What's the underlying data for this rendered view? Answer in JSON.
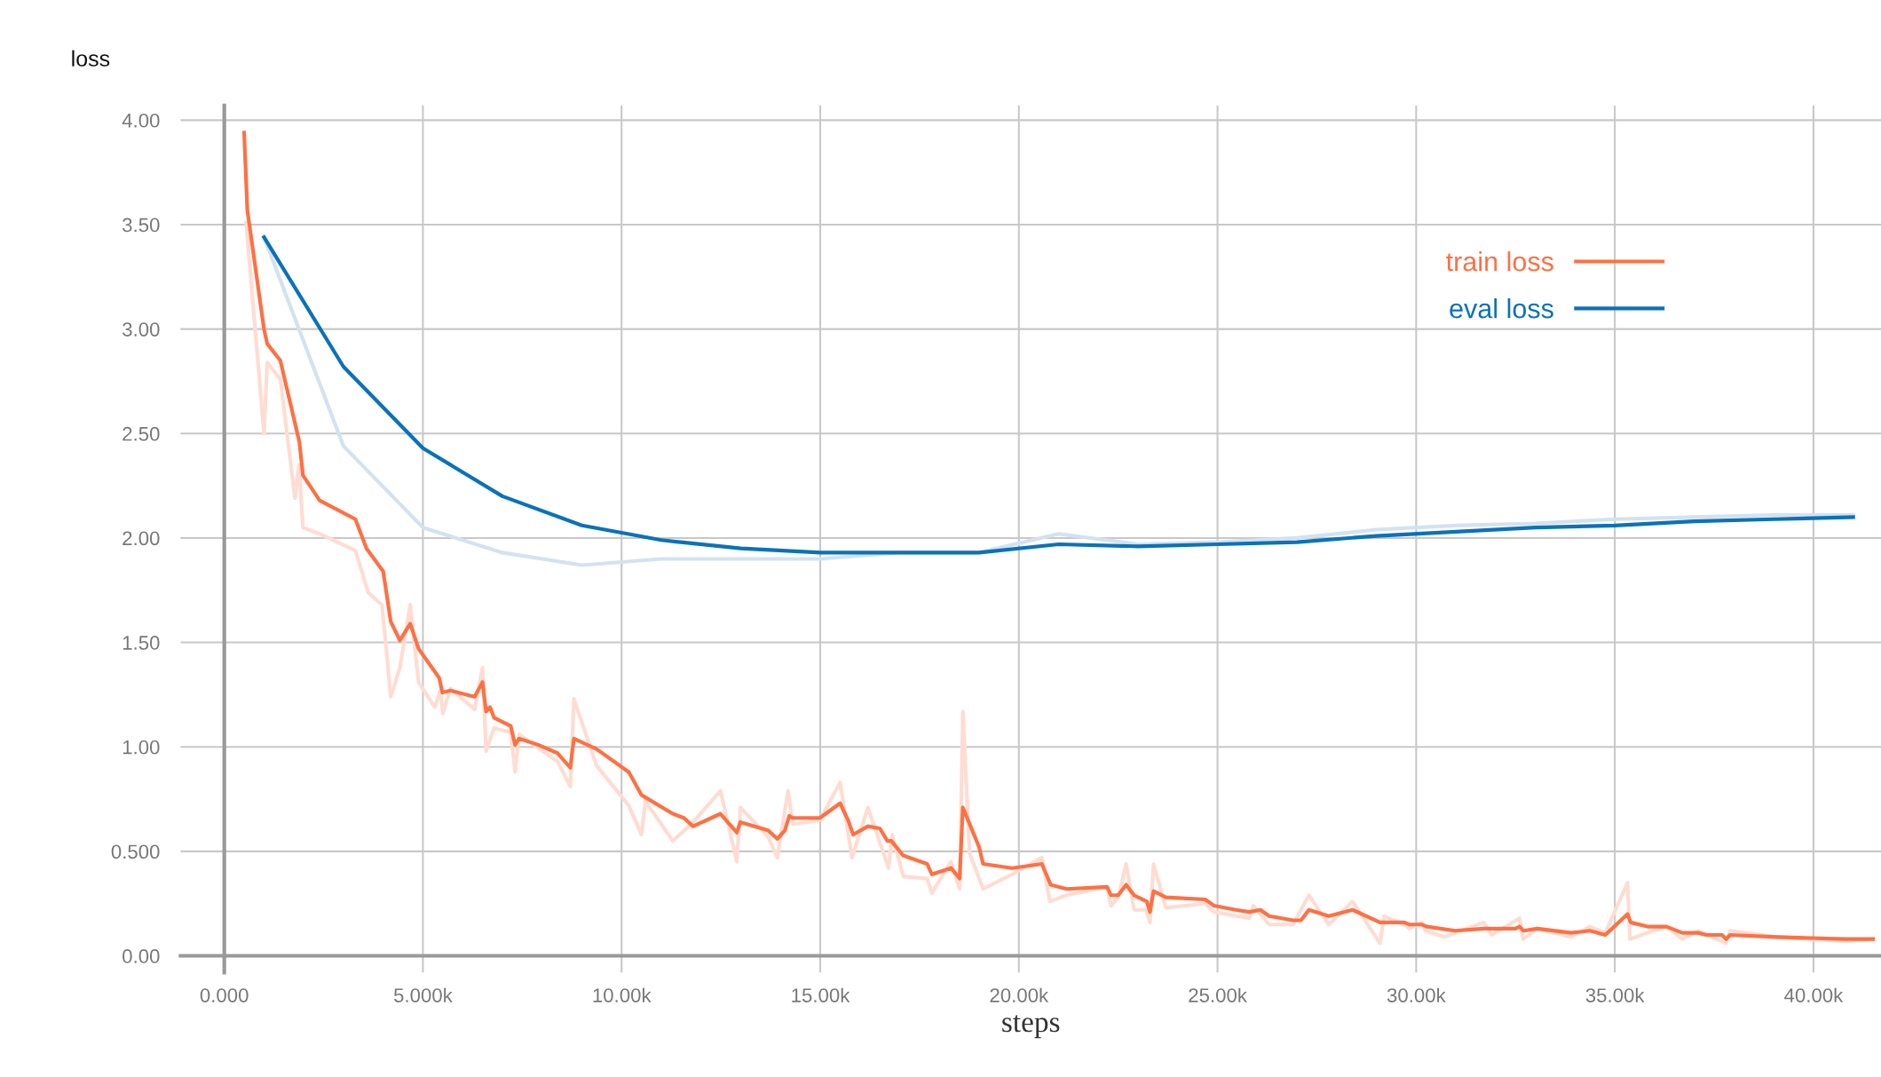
{
  "chart_data": {
    "type": "line",
    "ylabel": "loss",
    "xlabel": "steps",
    "xlim": [
      -1100,
      41700
    ],
    "ylim": [
      -0.08,
      4.07
    ],
    "xticks": [
      {
        "value": 0,
        "label": "0.000"
      },
      {
        "value": 5000,
        "label": "5.000k"
      },
      {
        "value": 10000,
        "label": "10.00k"
      },
      {
        "value": 15000,
        "label": "15.00k"
      },
      {
        "value": 20000,
        "label": "20.00k"
      },
      {
        "value": 25000,
        "label": "25.00k"
      },
      {
        "value": 30000,
        "label": "30.00k"
      },
      {
        "value": 35000,
        "label": "35.00k"
      },
      {
        "value": 40000,
        "label": "40.00k"
      }
    ],
    "yticks": [
      {
        "value": 0,
        "label": "0.00"
      },
      {
        "value": 0.5,
        "label": "0.500"
      },
      {
        "value": 1,
        "label": "1.00"
      },
      {
        "value": 1.5,
        "label": "1.50"
      },
      {
        "value": 2,
        "label": "2.00"
      },
      {
        "value": 2.5,
        "label": "2.50"
      },
      {
        "value": 3,
        "label": "3.00"
      },
      {
        "value": 3.5,
        "label": "3.50"
      },
      {
        "value": 4,
        "label": "4.00"
      }
    ],
    "grid": true,
    "legend": "top right",
    "marker": "none",
    "line_style": "solid",
    "series": [
      {
        "color": "#ffdcd2",
        "x": [
          550,
          1000,
          1080,
          1410,
          1780,
          1880,
          1980,
          2400,
          3300,
          3620,
          3970,
          4190,
          4420,
          4680,
          4890,
          5300,
          5440,
          5500,
          5690,
          6300,
          6500,
          6590,
          6790,
          7210,
          7320,
          7420,
          8390,
          8710,
          8800,
          9370,
          10180,
          10500,
          10600,
          11290,
          11800,
          12490,
          12900,
          12990,
          13690,
          13920,
          14190,
          14310,
          14990,
          15500,
          15800,
          16200,
          16720,
          16810,
          17090,
          17690,
          17810,
          18290,
          18510,
          18590,
          18760,
          19100,
          19830,
          20580,
          20780,
          21200,
          22220,
          22320,
          22500,
          22700,
          22900,
          23200,
          23300,
          23390,
          23700,
          24690,
          24910,
          25800,
          25900,
          26300,
          26900,
          27300,
          27800,
          28400,
          29090,
          29190,
          29700,
          29830,
          30140,
          30230,
          30710,
          30980,
          31700,
          31900,
          32600,
          32690,
          33050,
          33900,
          34370,
          34760,
          35320,
          35380,
          35820,
          36300,
          36700,
          37100,
          37800,
          37900,
          39100,
          40800,
          41500
        ],
        "values": [
          3.51,
          2.5,
          2.84,
          2.76,
          2.19,
          2.35,
          2.05,
          2.02,
          1.94,
          1.74,
          1.68,
          1.24,
          1.38,
          1.68,
          1.31,
          1.19,
          1.27,
          1.16,
          1.28,
          1.18,
          1.38,
          0.98,
          1.09,
          1.07,
          0.88,
          1.06,
          0.93,
          0.81,
          1.23,
          0.91,
          0.72,
          0.58,
          0.74,
          0.55,
          0.64,
          0.79,
          0.45,
          0.71,
          0.57,
          0.47,
          0.79,
          0.63,
          0.65,
          0.83,
          0.47,
          0.71,
          0.42,
          0.58,
          0.38,
          0.37,
          0.3,
          0.45,
          0.32,
          1.17,
          0.49,
          0.32,
          0.39,
          0.47,
          0.26,
          0.29,
          0.33,
          0.24,
          0.28,
          0.44,
          0.22,
          0.22,
          0.16,
          0.44,
          0.23,
          0.25,
          0.21,
          0.18,
          0.24,
          0.15,
          0.15,
          0.29,
          0.15,
          0.26,
          0.06,
          0.19,
          0.15,
          0.13,
          0.16,
          0.12,
          0.09,
          0.11,
          0.16,
          0.1,
          0.18,
          0.08,
          0.13,
          0.09,
          0.14,
          0.11,
          0.35,
          0.08,
          0.11,
          0.14,
          0.08,
          0.12,
          0.06,
          0.12,
          0.09,
          0.07,
          0.08
        ]
      },
      {
        "color": "#d3e2f1",
        "x": [
          1000,
          3000,
          5000,
          7000,
          9000,
          11000,
          13000,
          15000,
          17000,
          19000,
          21000,
          23000,
          25000,
          27000,
          29000,
          31000,
          33000,
          35000,
          37000,
          39000,
          41000
        ],
        "values": [
          3.44,
          2.44,
          2.05,
          1.93,
          1.87,
          1.9,
          1.9,
          1.9,
          1.93,
          1.93,
          2.02,
          1.97,
          1.98,
          2.0,
          2.04,
          2.06,
          2.07,
          2.09,
          2.1,
          2.11,
          2.11
        ]
      },
      {
        "name": "eval loss",
        "color": "#0a72ba",
        "x": [
          1000,
          3000,
          5000,
          7000,
          9000,
          11000,
          13000,
          15000,
          17000,
          19000,
          21000,
          23000,
          25000,
          27000,
          29000,
          31000,
          33000,
          35000,
          37000,
          39000,
          41000
        ],
        "values": [
          3.44,
          2.82,
          2.43,
          2.2,
          2.06,
          1.99,
          1.95,
          1.93,
          1.93,
          1.93,
          1.97,
          1.96,
          1.97,
          1.98,
          2.01,
          2.03,
          2.05,
          2.06,
          2.08,
          2.09,
          2.1
        ]
      },
      {
        "name": "train loss",
        "color": "#ff7043",
        "x": [
          500,
          580,
          1000,
          1080,
          1410,
          1890,
          1980,
          2400,
          3300,
          3580,
          4000,
          4190,
          4420,
          4680,
          4890,
          5410,
          5490,
          5690,
          6300,
          6500,
          6590,
          6690,
          6790,
          7210,
          7320,
          7420,
          7900,
          8390,
          8710,
          8800,
          9370,
          10180,
          10500,
          11290,
          11570,
          11800,
          12490,
          12900,
          12990,
          13690,
          13920,
          14110,
          14220,
          14310,
          14990,
          15500,
          15700,
          15830,
          16200,
          16500,
          16690,
          16790,
          17090,
          17690,
          17810,
          18290,
          18510,
          18590,
          19000,
          19100,
          19830,
          20580,
          20800,
          21200,
          22220,
          22320,
          22500,
          22700,
          22900,
          23220,
          23300,
          23390,
          23700,
          24690,
          24910,
          25460,
          25800,
          26080,
          26300,
          26900,
          27100,
          27300,
          27800,
          28400,
          29090,
          29700,
          29830,
          30140,
          30270,
          30980,
          31700,
          31860,
          32500,
          32600,
          32700,
          33050,
          33900,
          34370,
          34760,
          35320,
          35400,
          35820,
          36300,
          36700,
          37100,
          37300,
          37700,
          37800,
          37900,
          39100,
          40800,
          41500
        ],
        "values": [
          3.94,
          3.57,
          3.0,
          2.93,
          2.85,
          2.46,
          2.3,
          2.18,
          2.09,
          1.95,
          1.84,
          1.6,
          1.51,
          1.59,
          1.47,
          1.33,
          1.26,
          1.27,
          1.24,
          1.31,
          1.17,
          1.19,
          1.14,
          1.1,
          1.01,
          1.04,
          1.01,
          0.97,
          0.9,
          1.04,
          0.99,
          0.88,
          0.77,
          0.68,
          0.66,
          0.62,
          0.68,
          0.59,
          0.64,
          0.6,
          0.56,
          0.6,
          0.67,
          0.66,
          0.66,
          0.73,
          0.65,
          0.58,
          0.62,
          0.61,
          0.55,
          0.55,
          0.48,
          0.44,
          0.39,
          0.42,
          0.37,
          0.71,
          0.52,
          0.44,
          0.42,
          0.44,
          0.34,
          0.32,
          0.33,
          0.29,
          0.29,
          0.34,
          0.29,
          0.26,
          0.21,
          0.31,
          0.28,
          0.27,
          0.24,
          0.22,
          0.21,
          0.22,
          0.19,
          0.17,
          0.17,
          0.22,
          0.19,
          0.22,
          0.16,
          0.16,
          0.15,
          0.15,
          0.14,
          0.12,
          0.13,
          0.13,
          0.13,
          0.14,
          0.12,
          0.13,
          0.11,
          0.12,
          0.1,
          0.2,
          0.16,
          0.14,
          0.14,
          0.11,
          0.11,
          0.1,
          0.1,
          0.08,
          0.1,
          0.09,
          0.08,
          0.08
        ]
      }
    ]
  }
}
